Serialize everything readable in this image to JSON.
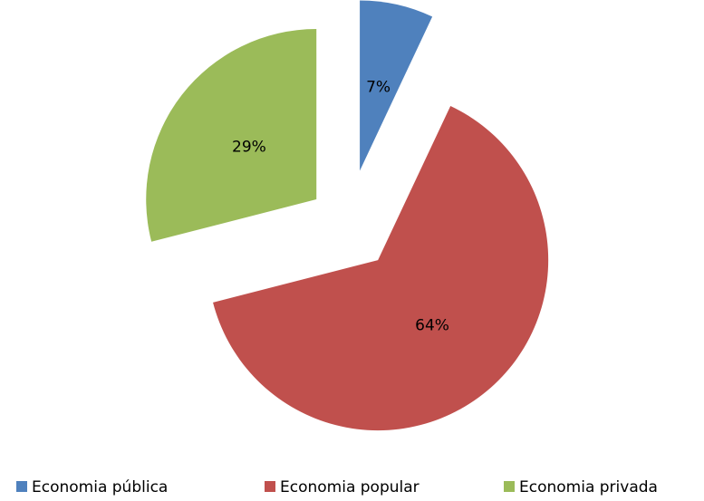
{
  "chart_data": {
    "type": "pie",
    "categories": [
      "Economia pública",
      "Economia popular",
      "Economia privada"
    ],
    "values": [
      7,
      64,
      29
    ],
    "value_labels": [
      "7%",
      "64%",
      "29%"
    ],
    "colors": [
      "#4f81bd",
      "#c0504d",
      "#9bbb59"
    ],
    "legend": "bottom"
  }
}
